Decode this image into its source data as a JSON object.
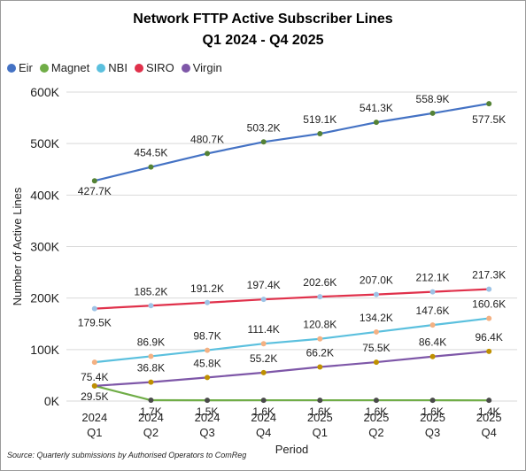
{
  "title_line1": "Network FTTP Active Subscriber Lines",
  "title_line2": "Q1 2024 - Q4 2025",
  "source": "Source: Quarterly submissions by Authorised Operators to ComReg",
  "chart_data": {
    "type": "line",
    "categories": [
      [
        "2024",
        "Q1"
      ],
      [
        "2024",
        "Q2"
      ],
      [
        "2024",
        "Q3"
      ],
      [
        "2024",
        "Q4"
      ],
      [
        "2025",
        "Q1"
      ],
      [
        "2025",
        "Q2"
      ],
      [
        "2025",
        "Q3"
      ],
      [
        "2025",
        "Q4"
      ]
    ],
    "xlabel": "Period",
    "ylabel": "Number of Active Lines",
    "ylim": [
      0,
      600000
    ],
    "yticks": [
      0,
      100000,
      200000,
      300000,
      400000,
      500000,
      600000
    ],
    "ytick_labels": [
      "0K",
      "100K",
      "200K",
      "300K",
      "400K",
      "500K",
      "600K"
    ],
    "grid": true,
    "legend_position": "top-left",
    "series": [
      {
        "name": "Eir",
        "color": "#4472c4",
        "marker_color": "#548235",
        "values": [
          427700,
          454500,
          480700,
          503200,
          519100,
          541300,
          558900,
          577500
        ],
        "labels": [
          "427.7K",
          "454.5K",
          "480.7K",
          "503.2K",
          "519.1K",
          "541.3K",
          "558.9K",
          "577.5K"
        ]
      },
      {
        "name": "Magnet",
        "color": "#70ad47",
        "marker_color": "#4a4a4a",
        "values": [
          29500,
          1700,
          1500,
          1600,
          1600,
          1600,
          1600,
          1400
        ],
        "labels": [
          "29.5K",
          "1.7K",
          "1.5K",
          "1.6K",
          "1.6K",
          "1.6K",
          "1.6K",
          "1.4K"
        ]
      },
      {
        "name": "NBI",
        "color": "#5bc0de",
        "marker_color": "#f4b183",
        "values": [
          75400,
          86900,
          98700,
          111400,
          120800,
          134200,
          147600,
          160600
        ],
        "labels": [
          "75.4K",
          "86.9K",
          "98.7K",
          "111.4K",
          "120.8K",
          "134.2K",
          "147.6K",
          "160.6K"
        ]
      },
      {
        "name": "SIRO",
        "color": "#e0314b",
        "marker_color": "#9dc3e6",
        "values": [
          179500,
          185200,
          191200,
          197400,
          202600,
          207000,
          212100,
          217300
        ],
        "labels": [
          "179.5K",
          "185.2K",
          "191.2K",
          "197.4K",
          "202.6K",
          "207.0K",
          "212.1K",
          "217.3K"
        ]
      },
      {
        "name": "Virgin",
        "color": "#7e57a8",
        "marker_color": "#bf9000",
        "values": [
          29500,
          36800,
          45800,
          55200,
          66200,
          75500,
          86400,
          96400
        ],
        "labels": [
          "",
          "36.8K",
          "45.8K",
          "55.2K",
          "66.2K",
          "75.5K",
          "86.4K",
          "96.4K"
        ]
      }
    ]
  }
}
